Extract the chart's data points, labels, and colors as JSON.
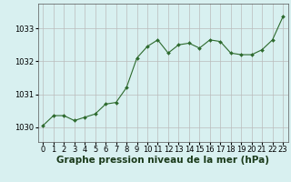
{
  "x": [
    0,
    1,
    2,
    3,
    4,
    5,
    6,
    7,
    8,
    9,
    10,
    11,
    12,
    13,
    14,
    15,
    16,
    17,
    18,
    19,
    20,
    21,
    22,
    23
  ],
  "y": [
    1030.05,
    1030.35,
    1030.35,
    1030.2,
    1030.3,
    1030.4,
    1030.7,
    1030.75,
    1031.2,
    1032.1,
    1032.45,
    1032.65,
    1032.25,
    1032.5,
    1032.55,
    1032.4,
    1032.65,
    1032.6,
    1032.25,
    1032.2,
    1032.2,
    1032.35,
    1032.65,
    1033.35
  ],
  "line_color": "#2d6a2d",
  "marker_color": "#2d6a2d",
  "bg_color": "#d8f0f0",
  "grid_color": "#bbbbbb",
  "xlabel": "Graphe pression niveau de la mer (hPa)",
  "xlabel_color": "#1a3a1a",
  "ylabel_ticks": [
    1030,
    1031,
    1032,
    1033
  ],
  "xticks": [
    0,
    1,
    2,
    3,
    4,
    5,
    6,
    7,
    8,
    9,
    10,
    11,
    12,
    13,
    14,
    15,
    16,
    17,
    18,
    19,
    20,
    21,
    22,
    23
  ],
  "ylim": [
    1029.55,
    1033.75
  ],
  "xlim": [
    -0.5,
    23.5
  ],
  "tick_fontsize": 6.0,
  "xlabel_fontsize": 7.5
}
